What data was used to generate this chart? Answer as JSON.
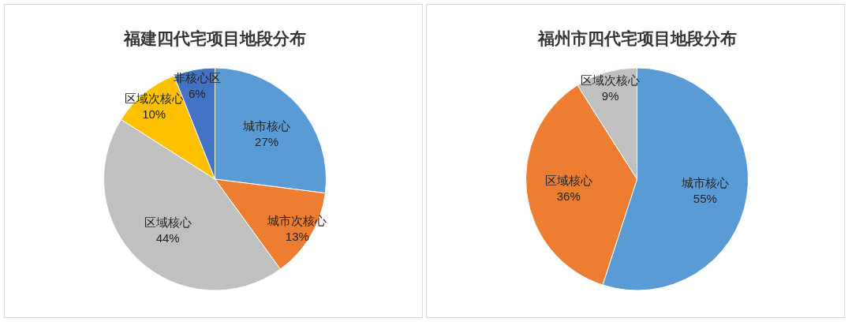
{
  "chart_data": [
    {
      "type": "pie",
      "title": "福建四代宅项目地段分布",
      "categories": [
        "城市核心",
        "城市次核心",
        "区域核心",
        "区域次核心",
        "非核心区"
      ],
      "values": [
        27,
        13,
        44,
        10,
        6
      ],
      "colors": [
        "#5b9bd5",
        "#ed7d31",
        "#c0c0c0",
        "#ffc000",
        "#4472c4"
      ],
      "value_labels": [
        "27%",
        "13%",
        "44%",
        "10%",
        "6%"
      ]
    },
    {
      "type": "pie",
      "title": "福州市四代宅项目地段分布",
      "categories": [
        "城市核心",
        "区域核心",
        "区域次核心"
      ],
      "values": [
        55,
        36,
        9
      ],
      "colors": [
        "#5b9bd5",
        "#ed7d31",
        "#c0c0c0"
      ],
      "value_labels": [
        "55%",
        "36%",
        "9%"
      ]
    }
  ]
}
